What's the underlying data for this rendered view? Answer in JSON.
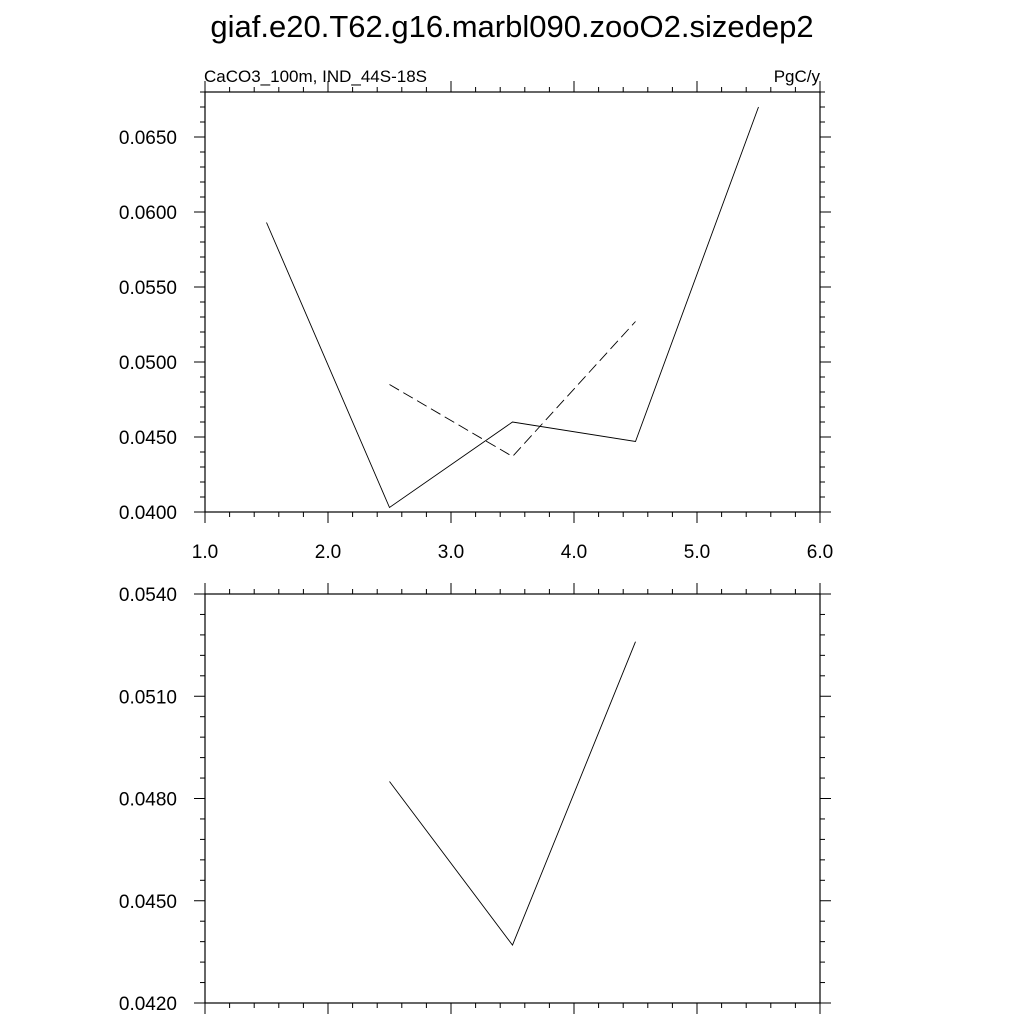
{
  "title": "giaf.e20.T62.g16.marbl090.zooO2.sizedep2",
  "chart_data": [
    {
      "type": "line",
      "left_label": "CaCO3_100m, IND_44S-18S",
      "right_label": "PgC/y",
      "xlim": [
        1.0,
        6.0
      ],
      "ylim": [
        0.04,
        0.068
      ],
      "x_ticks": [
        "1.0",
        "2.0",
        "3.0",
        "4.0",
        "5.0",
        "6.0"
      ],
      "y_ticks": [
        "0.0400",
        "0.0450",
        "0.0500",
        "0.0550",
        "0.0600",
        "0.0650"
      ],
      "y_tick_values": [
        0.04,
        0.045,
        0.05,
        0.055,
        0.06,
        0.065
      ],
      "series": [
        {
          "style": "solid",
          "x": [
            1.5,
            2.5,
            3.5,
            4.5,
            5.5
          ],
          "y": [
            0.0593,
            0.0403,
            0.046,
            0.0447,
            0.067
          ]
        },
        {
          "style": "dashed",
          "x": [
            2.5,
            3.5,
            4.5
          ],
          "y": [
            0.0485,
            0.0437,
            0.0527
          ]
        }
      ]
    },
    {
      "type": "line",
      "xlim": [
        1.0,
        6.0
      ],
      "ylim": [
        0.042,
        0.054
      ],
      "y_ticks": [
        "0.0420",
        "0.0450",
        "0.0480",
        "0.0510",
        "0.0540"
      ],
      "y_tick_values": [
        0.042,
        0.045,
        0.048,
        0.051,
        0.054
      ],
      "series": [
        {
          "style": "solid",
          "x": [
            2.5,
            3.5,
            4.5
          ],
          "y": [
            0.0485,
            0.0437,
            0.0526
          ]
        }
      ]
    }
  ]
}
